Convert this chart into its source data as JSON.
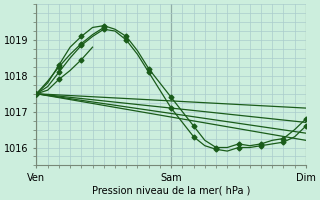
{
  "xlabel": "Pression niveau de la mer( hPa )",
  "bg_color": "#cceedd",
  "grid_color": "#aacccc",
  "line_color": "#1a5c1a",
  "marker": "D",
  "markersize": 2.5,
  "linewidth": 0.9,
  "xlim": [
    0,
    48
  ],
  "ylim": [
    1015.5,
    1019.8
  ],
  "yticks": [
    1016,
    1017,
    1018,
    1019
  ],
  "xtick_positions": [
    0,
    24,
    48
  ],
  "xtick_labels": [
    "Ven",
    "Sam",
    "Dim"
  ],
  "vline_color": "#556655",
  "series": [
    {
      "x": [
        0,
        48
      ],
      "y": [
        1017.5,
        1017.1
      ],
      "with_markers": false
    },
    {
      "x": [
        0,
        48
      ],
      "y": [
        1017.5,
        1016.7
      ],
      "with_markers": false
    },
    {
      "x": [
        0,
        48
      ],
      "y": [
        1017.5,
        1016.4
      ],
      "with_markers": false
    },
    {
      "x": [
        0,
        48
      ],
      "y": [
        1017.5,
        1016.2
      ],
      "with_markers": false
    },
    {
      "x": [
        0,
        2,
        4,
        6,
        8,
        10,
        12,
        14,
        16,
        18,
        20,
        22,
        24,
        26,
        28,
        30,
        32,
        34,
        36,
        38,
        40,
        42,
        44,
        46,
        48
      ],
      "y": [
        1017.5,
        1017.8,
        1018.3,
        1018.8,
        1019.1,
        1019.35,
        1019.4,
        1019.3,
        1019.1,
        1018.7,
        1018.2,
        1017.8,
        1017.4,
        1017.0,
        1016.6,
        1016.2,
        1016.0,
        1016.0,
        1016.1,
        1016.05,
        1016.1,
        1016.2,
        1016.25,
        1016.5,
        1016.8
      ],
      "with_markers": true
    },
    {
      "x": [
        0,
        2,
        4,
        6,
        8,
        10,
        12,
        14,
        16,
        18,
        20,
        22,
        24,
        26,
        28,
        30,
        32,
        34,
        36,
        38,
        40,
        42,
        44,
        46,
        48
      ],
      "y": [
        1017.5,
        1017.7,
        1018.1,
        1018.5,
        1018.85,
        1019.1,
        1019.3,
        1019.25,
        1019.0,
        1018.6,
        1018.1,
        1017.6,
        1017.1,
        1016.7,
        1016.3,
        1016.05,
        1015.95,
        1015.9,
        1016.0,
        1016.0,
        1016.05,
        1016.1,
        1016.15,
        1016.3,
        1016.6
      ],
      "with_markers": true
    },
    {
      "x": [
        0,
        2,
        4,
        6,
        8,
        10,
        12
      ],
      "y": [
        1017.5,
        1017.85,
        1018.25,
        1018.6,
        1018.9,
        1019.15,
        1019.35
      ],
      "with_markers": true
    },
    {
      "x": [
        0,
        2,
        4,
        6,
        8,
        10
      ],
      "y": [
        1017.5,
        1017.6,
        1017.9,
        1018.15,
        1018.45,
        1018.8
      ],
      "with_markers": true
    }
  ]
}
